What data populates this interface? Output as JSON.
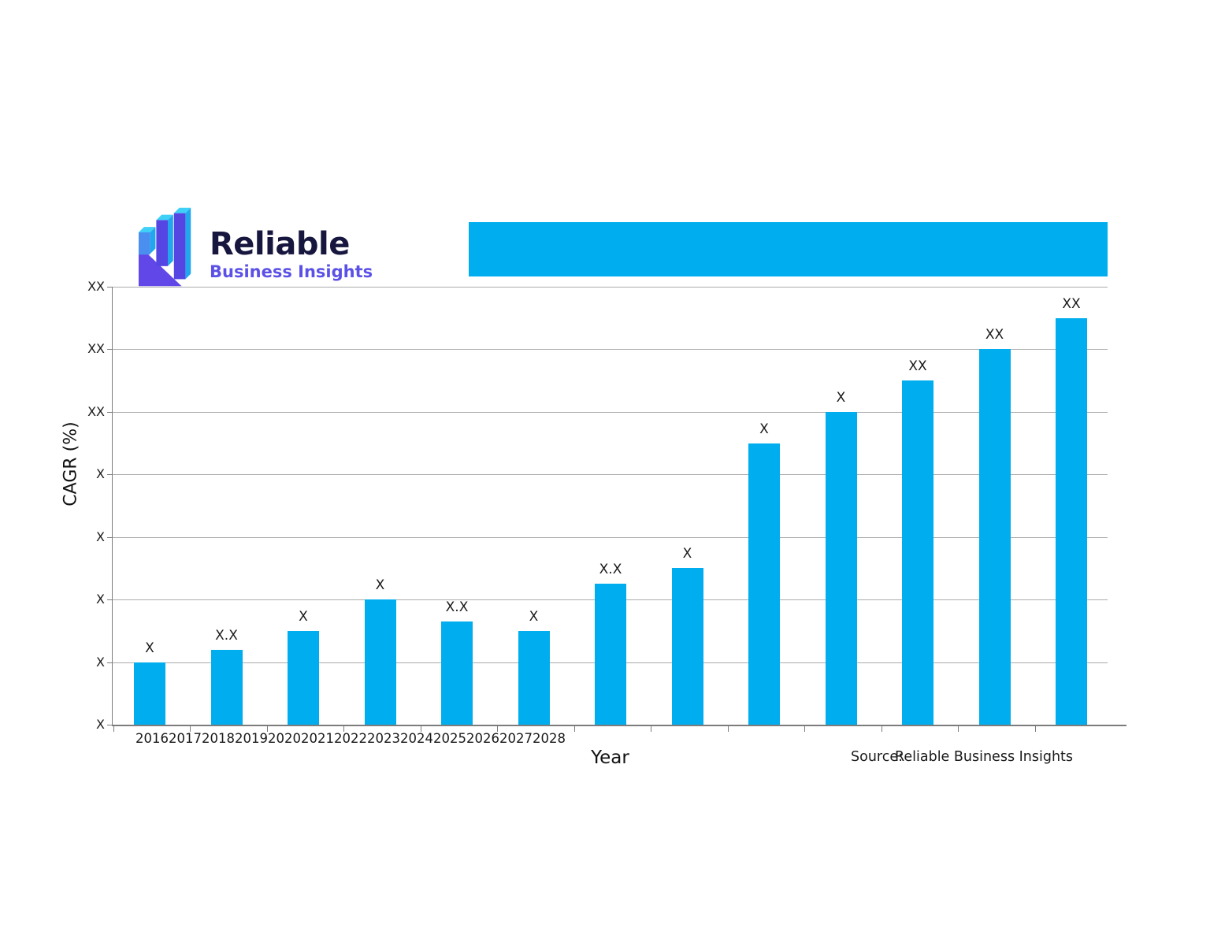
{
  "logo": {
    "title": "Reliable",
    "subtitle": "Business Insights",
    "title_color": "#17163E",
    "subtitle_color": "#5B51E6",
    "icon_colors": {
      "bar_front": "#5546E3",
      "bar_top": "#3FD0F7",
      "bar_side": "#22A7EE",
      "arrow": "#6247E8"
    }
  },
  "banner": {
    "color": "#00AEEF",
    "text": ""
  },
  "source": {
    "prefix": "Source:",
    "name": "Reliable Business Insights"
  },
  "chart_data": {
    "type": "bar",
    "title": "",
    "categories": [
      "2016",
      "2017",
      "2018",
      "2019",
      "2020",
      "2021",
      "2022",
      "2023",
      "2024",
      "2025",
      "2026",
      "2027",
      "2028"
    ],
    "values": [
      1,
      1.2,
      1.5,
      2,
      1.65,
      1.5,
      2.25,
      2.5,
      4.5,
      5,
      5.5,
      6,
      6.5
    ],
    "bar_labels": [
      "X",
      "X.X",
      "X",
      "X",
      "X.X",
      "X",
      "X.X",
      "X",
      "X",
      "X",
      "XX",
      "XX",
      "XX"
    ],
    "y_tick_labels_top_to_bottom": [
      "XX",
      "XX",
      "XX",
      "X",
      "X",
      "X",
      "X",
      "X"
    ],
    "xlabel": "Year",
    "ylabel": "CAGR (%)",
    "ylim": [
      0,
      7
    ],
    "grid": true,
    "legend": "none",
    "bar_color": "#00AEEF",
    "value_note": "Numeric values are masked as X placeholders in the chart; values array gives bar heights in gridline units"
  }
}
